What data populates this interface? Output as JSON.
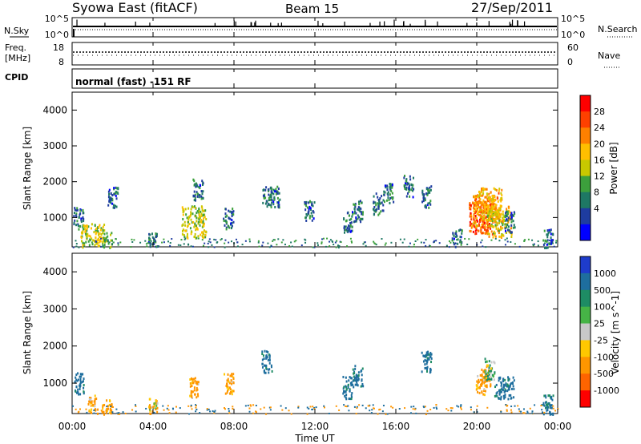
{
  "header": {
    "station": "Syowa East (fitACF)",
    "beam": "Beam 15",
    "date": "27/Sep/2011"
  },
  "top_panels": {
    "nsky_label": "N.Sky",
    "nsky_ticks": [
      "10^5",
      "10^0"
    ],
    "nsearch_label": "N.Search",
    "nsearch_ticks": [
      "10^5",
      "10^0"
    ],
    "freq_label_line1": "Freq.",
    "freq_label_line2": "[MHz]",
    "freq_ticks": [
      "18",
      "8"
    ],
    "nave_label": "Nave",
    "nave_ticks": [
      "60",
      "0"
    ],
    "cpid_label": "CPID",
    "cpid_text": "normal (fast) -151 RF"
  },
  "axes": {
    "y_label": "Slant Range [km]",
    "y_ticks": [
      "4000",
      "3000",
      "2000",
      "1000"
    ],
    "x_label": "Time UT",
    "x_ticks": [
      "00:00",
      "04:00",
      "08:00",
      "12:00",
      "16:00",
      "20:00",
      "00:00"
    ]
  },
  "colorbars": {
    "power": {
      "label": "Power [dB]",
      "ticks": [
        "28",
        "24",
        "20",
        "16",
        "12",
        "8",
        "4"
      ],
      "colors": [
        "#ff0000",
        "#ff4000",
        "#ff8000",
        "#ffbf00",
        "#c8c800",
        "#3ca03c",
        "#1e7864",
        "#1e3ca0",
        "#0000ff"
      ]
    },
    "velocity": {
      "label": "Velocity [m s^-1]",
      "ticks": [
        "1000",
        "500",
        "100",
        "25",
        "-25",
        "-100",
        "-500",
        "-1000"
      ],
      "colors": [
        "#1e3ccc",
        "#1e6e9e",
        "#1e8c64",
        "#46b446",
        "#c8c8c8",
        "#ffc800",
        "#ff9600",
        "#ff6400",
        "#ff0000"
      ]
    }
  },
  "chart_data": [
    {
      "type": "heatmap",
      "title": "Power",
      "x_range_hours": [
        0,
        24
      ],
      "ylim": [
        180,
        4500
      ],
      "cluster_hours": [
        0.3,
        1.0,
        1.7,
        2.0,
        4.0,
        6.0,
        6.2,
        7.7,
        9.6,
        10.0,
        11.7,
        13.6,
        14.1,
        15.1,
        15.6,
        16.6,
        17.5,
        19.0,
        20.2,
        20.4,
        20.6,
        21.1,
        21.6,
        23.5
      ],
      "cluster_range_km": [
        1000,
        400,
        300,
        1600,
        300,
        900,
        1800,
        1000,
        1600,
        1600,
        1200,
        900,
        1200,
        1400,
        1700,
        1900,
        1600,
        400,
        1000,
        1200,
        1400,
        900,
        900,
        400
      ],
      "cluster_power_db": [
        8,
        16,
        12,
        8,
        8,
        16,
        8,
        8,
        8,
        8,
        8,
        8,
        8,
        8,
        8,
        8,
        8,
        8,
        26,
        22,
        20,
        18,
        8,
        8
      ]
    },
    {
      "type": "heatmap",
      "title": "Velocity",
      "x_range_hours": [
        0,
        24
      ],
      "ylim": [
        180,
        4500
      ],
      "cluster_hours": [
        0.3,
        1.0,
        1.7,
        4.0,
        6.0,
        7.7,
        9.6,
        13.6,
        14.1,
        17.5,
        20.2,
        20.4,
        20.6,
        21.1,
        21.6,
        23.5
      ],
      "cluster_range_km": [
        1000,
        400,
        300,
        300,
        900,
        1000,
        1600,
        900,
        1200,
        1600,
        1000,
        1200,
        1400,
        900,
        900,
        400
      ],
      "cluster_velocity_ms": [
        600,
        -150,
        -150,
        -80,
        -150,
        -150,
        600,
        600,
        600,
        600,
        -150,
        -300,
        100,
        600,
        600,
        600
      ]
    }
  ]
}
